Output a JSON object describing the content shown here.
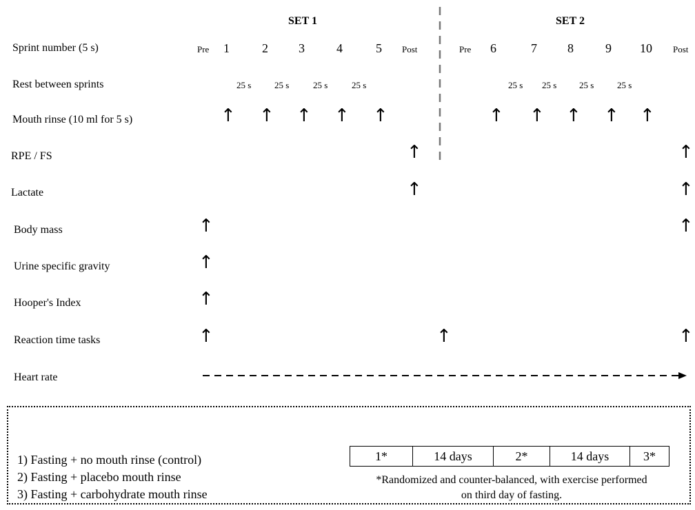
{
  "sets": [
    "SET 1",
    "SET 2"
  ],
  "labels": {
    "pre": "Pre",
    "post": "Post",
    "rest": "25 s"
  },
  "sprints": {
    "set1": [
      "1",
      "2",
      "3",
      "4",
      "5"
    ],
    "set2": [
      "6",
      "7",
      "8",
      "9",
      "10"
    ]
  },
  "rows": [
    "Sprint number (5 s)",
    "Rest between sprints",
    "Mouth rinse (10 ml for 5 s)",
    "RPE / FS",
    "Lactate",
    "Body mass",
    "Urine specific gravity",
    "Hooper's Index",
    "Reaction time tasks",
    "Heart rate"
  ],
  "conditions": [
    "1)   Fasting + no mouth rinse (control)",
    "2)   Fasting + placebo mouth rinse",
    "3)   Fasting + carbohydrate mouth rinse"
  ],
  "timeline": [
    "1*",
    "14 days",
    "2*",
    "14 days",
    "3*"
  ],
  "footnote": [
    "*Randomized and counter-balanced, with exercise performed",
    "on third day of fasting."
  ],
  "icons": {
    "measurement_arrow": "up-arrow-icon",
    "continuous": "dashed-arrow-icon"
  }
}
